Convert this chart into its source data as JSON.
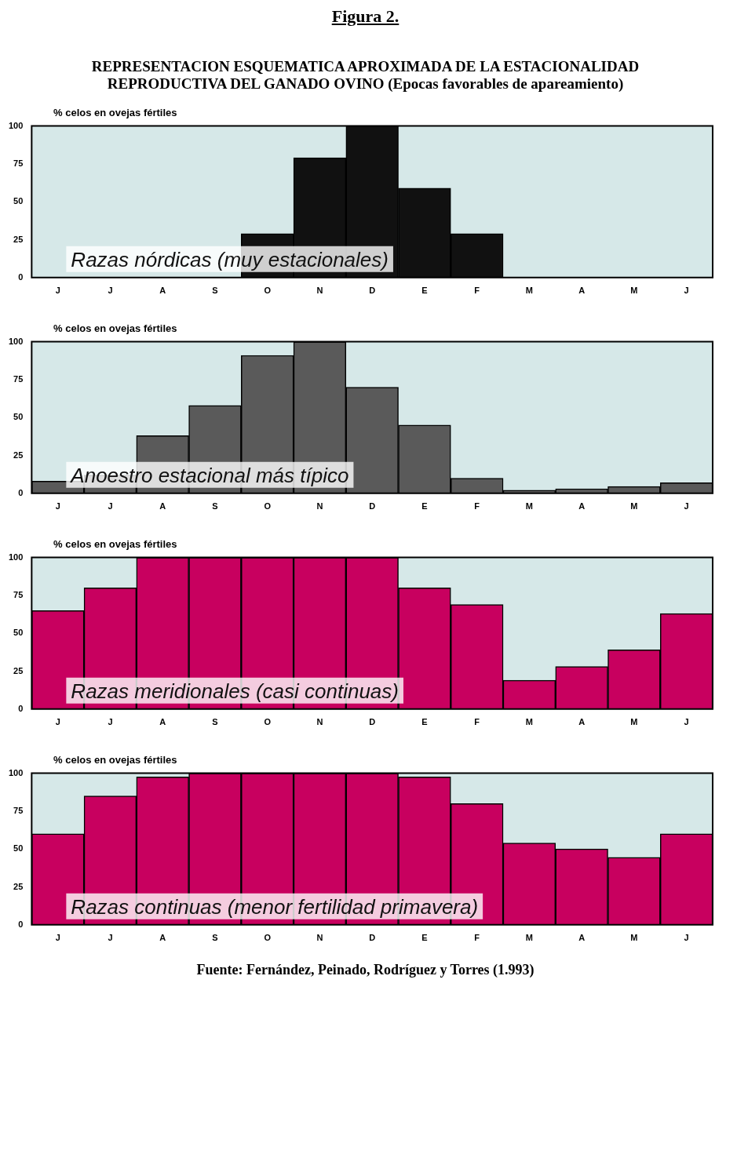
{
  "chart_data": [
    {
      "type": "bar",
      "title": "Figura 2.",
      "subtitle": "REPRESENTACION ESQUEMATICA APROXIMADA DE LA ESTACIONALIDAD REPRODUCTIVA DEL GANADO OVINO (Epocas favorables de apareamiento)",
      "ylabel": "% celos en ovejas fértiles",
      "categories": [
        "J",
        "J",
        "A",
        "S",
        "O",
        "N",
        "D",
        "E",
        "F",
        "M",
        "A",
        "M",
        "J"
      ],
      "values": [
        0,
        0,
        0,
        0,
        29,
        79,
        100,
        59,
        29,
        0,
        0,
        0,
        0
      ],
      "color": "#111111",
      "ylim": [
        0,
        100
      ],
      "yticks": [
        0,
        25,
        50,
        75,
        100
      ],
      "grid": false,
      "annotations": [
        "Razas nórdicas (muy estacionales)"
      ]
    },
    {
      "type": "bar",
      "ylabel": "% celos en ovejas fértiles",
      "categories": [
        "J",
        "J",
        "A",
        "S",
        "O",
        "N",
        "D",
        "E",
        "F",
        "M",
        "A",
        "M",
        "J"
      ],
      "values": [
        8,
        12,
        38,
        58,
        91,
        100,
        70,
        45,
        10,
        2,
        3,
        4.5,
        7
      ],
      "color": "#5a5a5a",
      "ylim": [
        0,
        100
      ],
      "yticks": [
        0,
        25,
        50,
        75,
        100
      ],
      "grid": false,
      "annotations": [
        "Anoestro estacional más típico"
      ]
    },
    {
      "type": "bar",
      "ylabel": "% celos en ovejas fértiles",
      "categories": [
        "J",
        "J",
        "A",
        "S",
        "O",
        "N",
        "D",
        "E",
        "F",
        "M",
        "A",
        "M",
        "J"
      ],
      "values": [
        65,
        80,
        100,
        100,
        100,
        100,
        100,
        80,
        69,
        19,
        28,
        39,
        63
      ],
      "color": "#c8005f",
      "ylim": [
        0,
        100
      ],
      "yticks": [
        0,
        25,
        50,
        75,
        100
      ],
      "grid": false,
      "annotations": [
        "Razas meridionales (casi continuas)"
      ]
    },
    {
      "type": "bar",
      "ylabel": "% celos en ovejas fértiles",
      "categories": [
        "J",
        "J",
        "A",
        "S",
        "O",
        "N",
        "D",
        "E",
        "F",
        "M",
        "A",
        "M",
        "J"
      ],
      "values": [
        60,
        85,
        97.5,
        100,
        100,
        100,
        100,
        97.5,
        80,
        54,
        50,
        44.5,
        60
      ],
      "color": "#c8005f",
      "ylim": [
        0,
        100
      ],
      "yticks": [
        0,
        25,
        50,
        75,
        100
      ],
      "grid": false,
      "annotations": [
        "Razas continuas (menor fertilidad primavera)",
        "Fuente: Fernández, Peinado, Rodríguez y Torres (1.993)"
      ]
    }
  ]
}
